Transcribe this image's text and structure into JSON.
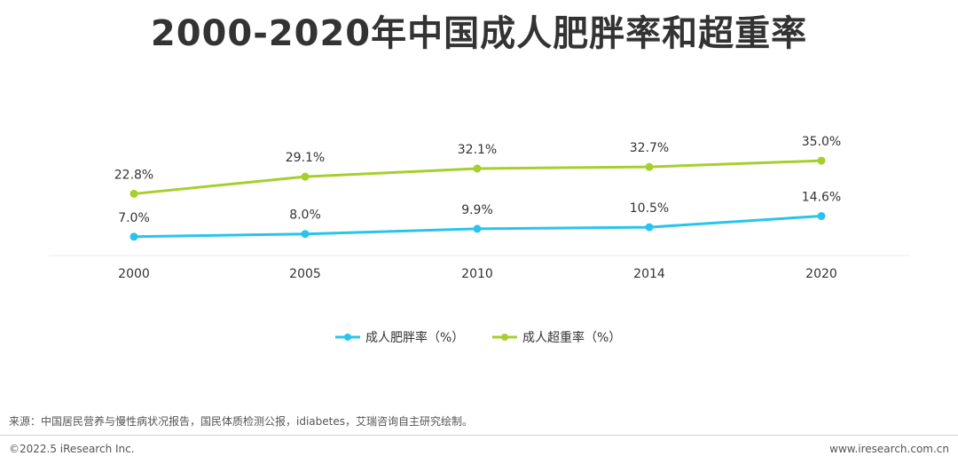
{
  "title": "2000-2020年中国成人肥胖率和超重率",
  "chart_data": {
    "type": "line",
    "categories": [
      "2000",
      "2005",
      "2010",
      "2014",
      "2020"
    ],
    "series": [
      {
        "name": "成人肥胖率（%）",
        "values": [
          7.0,
          8.0,
          9.9,
          10.5,
          14.6
        ],
        "labels": [
          "7.0%",
          "8.0%",
          "9.9%",
          "10.5%",
          "14.6%"
        ],
        "color": "#29c4ec"
      },
      {
        "name": "成人超重率（%）",
        "values": [
          22.8,
          29.1,
          32.1,
          32.7,
          35.0
        ],
        "labels": [
          "22.8%",
          "29.1%",
          "32.1%",
          "32.7%",
          "35.0%"
        ],
        "color": "#a6cf2d"
      }
    ],
    "legend_position": "bottom",
    "grid": false
  },
  "footer": {
    "source": "来源：中国居民营养与慢性病状况报告，国民体质检测公报，idiabetes，艾瑞咨询自主研究绘制。",
    "copyright": "©2022.5 iResearch Inc.",
    "website": "www.iresearch.com.cn"
  }
}
